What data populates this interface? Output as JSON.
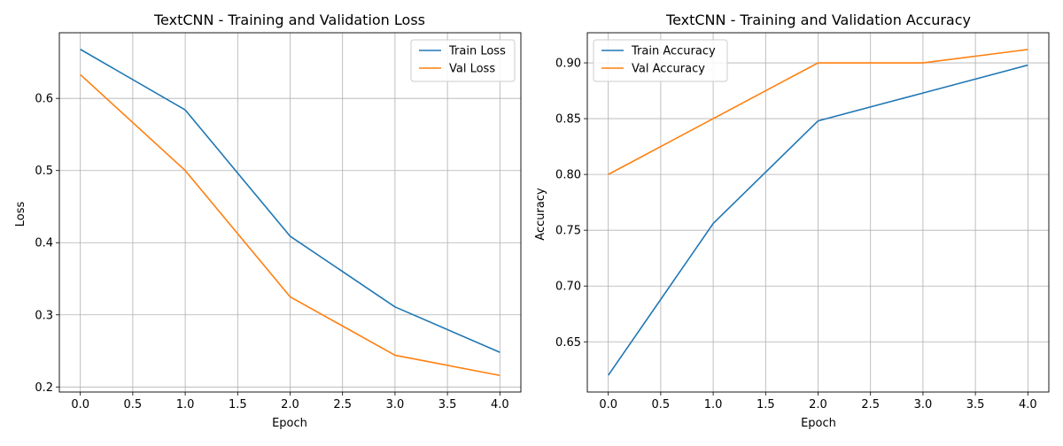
{
  "chart_data": [
    {
      "type": "line",
      "title": "TextCNN - Training and Validation Loss",
      "xlabel": "Epoch",
      "ylabel": "Loss",
      "x": [
        0,
        1,
        2,
        3,
        4
      ],
      "xlim": [
        -0.2,
        4.2
      ],
      "ylim": [
        0.193,
        0.691
      ],
      "xticks": [
        0.0,
        0.5,
        1.0,
        1.5,
        2.0,
        2.5,
        3.0,
        3.5,
        4.0
      ],
      "xtick_labels": [
        "0.0",
        "0.5",
        "1.0",
        "1.5",
        "2.0",
        "2.5",
        "3.0",
        "3.5",
        "4.0"
      ],
      "yticks": [
        0.2,
        0.3,
        0.4,
        0.5,
        0.6
      ],
      "ytick_labels": [
        "0.2",
        "0.3",
        "0.4",
        "0.5",
        "0.6"
      ],
      "grid": true,
      "legend_position": "upper right",
      "series": [
        {
          "name": "Train Loss",
          "color": "#1f77b4",
          "values": [
            0.668,
            0.584,
            0.409,
            0.311,
            0.248
          ]
        },
        {
          "name": "Val Loss",
          "color": "#ff7f0e",
          "values": [
            0.633,
            0.5,
            0.325,
            0.244,
            0.216
          ]
        }
      ]
    },
    {
      "type": "line",
      "title": "TextCNN - Training and Validation Accuracy",
      "xlabel": "Epoch",
      "ylabel": "Accuracy",
      "x": [
        0,
        1,
        2,
        3,
        4
      ],
      "xlim": [
        -0.2,
        4.2
      ],
      "ylim": [
        0.605,
        0.927
      ],
      "xticks": [
        0.0,
        0.5,
        1.0,
        1.5,
        2.0,
        2.5,
        3.0,
        3.5,
        4.0
      ],
      "xtick_labels": [
        "0.0",
        "0.5",
        "1.0",
        "1.5",
        "2.0",
        "2.5",
        "3.0",
        "3.5",
        "4.0"
      ],
      "yticks": [
        0.65,
        0.7,
        0.75,
        0.8,
        0.85,
        0.9
      ],
      "ytick_labels": [
        "0.65",
        "0.70",
        "0.75",
        "0.80",
        "0.85",
        "0.90"
      ],
      "grid": true,
      "legend_position": "upper left",
      "series": [
        {
          "name": "Train Accuracy",
          "color": "#1f77b4",
          "values": [
            0.62,
            0.756,
            0.848,
            0.873,
            0.898
          ]
        },
        {
          "name": "Val Accuracy",
          "color": "#ff7f0e",
          "values": [
            0.8,
            0.85,
            0.9,
            0.9,
            0.912
          ]
        }
      ]
    }
  ]
}
